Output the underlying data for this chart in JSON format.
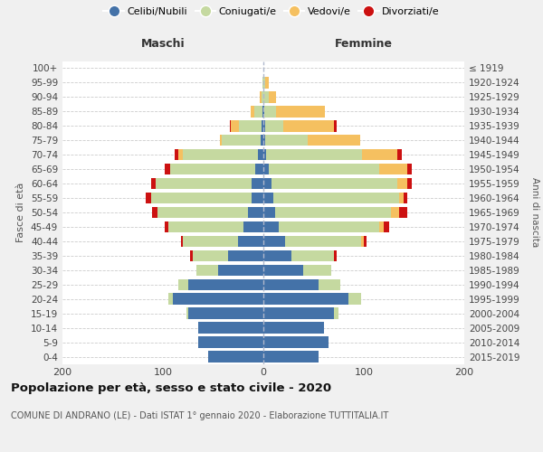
{
  "age_groups_bottom_up": [
    "0-4",
    "5-9",
    "10-14",
    "15-19",
    "20-24",
    "25-29",
    "30-34",
    "35-39",
    "40-44",
    "45-49",
    "50-54",
    "55-59",
    "60-64",
    "65-69",
    "70-74",
    "75-79",
    "80-84",
    "85-89",
    "90-94",
    "95-99",
    "100+"
  ],
  "birth_years_bottom_up": [
    "2015-2019",
    "2010-2014",
    "2005-2009",
    "2000-2004",
    "1995-1999",
    "1990-1994",
    "1985-1989",
    "1980-1984",
    "1975-1979",
    "1970-1974",
    "1965-1969",
    "1960-1964",
    "1955-1959",
    "1950-1954",
    "1945-1949",
    "1940-1944",
    "1935-1939",
    "1930-1934",
    "1925-1929",
    "1920-1924",
    "≤ 1919"
  ],
  "colors": {
    "celibi": "#4472a8",
    "coniugati": "#c5d9a0",
    "vedovi": "#f5c060",
    "divorziati": "#cc1111"
  },
  "m_celibi": [
    55,
    65,
    65,
    75,
    90,
    75,
    45,
    35,
    25,
    20,
    15,
    12,
    12,
    8,
    5,
    3,
    2,
    1,
    0,
    0,
    0
  ],
  "m_coniugati": [
    0,
    0,
    0,
    2,
    5,
    10,
    22,
    35,
    55,
    75,
    90,
    100,
    95,
    85,
    75,
    38,
    22,
    8,
    2,
    1,
    0
  ],
  "m_vedovi": [
    0,
    0,
    0,
    0,
    0,
    0,
    0,
    0,
    0,
    0,
    0,
    0,
    0,
    0,
    5,
    2,
    8,
    4,
    2,
    0,
    0
  ],
  "m_divorziati": [
    0,
    0,
    0,
    0,
    0,
    0,
    0,
    3,
    2,
    3,
    6,
    5,
    5,
    5,
    3,
    0,
    1,
    0,
    0,
    0,
    0
  ],
  "f_celibi": [
    55,
    65,
    60,
    70,
    85,
    55,
    40,
    28,
    22,
    15,
    12,
    10,
    8,
    5,
    3,
    2,
    2,
    1,
    0,
    0,
    0
  ],
  "f_coniugati": [
    0,
    0,
    0,
    5,
    12,
    22,
    28,
    42,
    75,
    100,
    115,
    125,
    125,
    110,
    95,
    42,
    18,
    12,
    5,
    2,
    0
  ],
  "f_vedovi": [
    0,
    0,
    0,
    0,
    0,
    0,
    0,
    0,
    3,
    5,
    8,
    5,
    10,
    28,
    35,
    52,
    50,
    48,
    8,
    3,
    0
  ],
  "f_divorziati": [
    0,
    0,
    0,
    0,
    0,
    0,
    0,
    3,
    3,
    5,
    8,
    3,
    5,
    5,
    5,
    0,
    3,
    0,
    0,
    0,
    0
  ],
  "title": "Popolazione per età, sesso e stato civile - 2020",
  "subtitle": "COMUNE DI ANDRANO (LE) - Dati ISTAT 1° gennaio 2020 - Elaborazione TUTTITALIA.IT",
  "xlabel_left": "Maschi",
  "xlabel_right": "Femmine",
  "ylabel_left": "Fasce di età",
  "ylabel_right": "Anni di nascita",
  "legend_labels": [
    "Celibi/Nubili",
    "Coniugati/e",
    "Vedovi/e",
    "Divorziati/e"
  ],
  "bg_color": "#f0f0f0",
  "plot_bg": "#ffffff"
}
